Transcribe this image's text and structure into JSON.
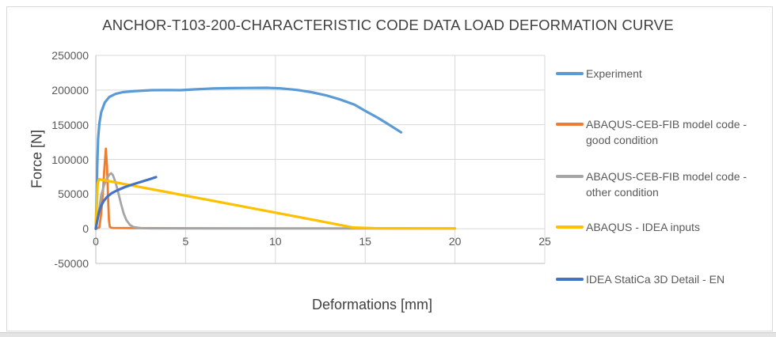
{
  "chart": {
    "title": "ANCHOR-T103-200-CHARACTERISTIC CODE DATA LOAD DEFORMATION CURVE",
    "x_axis_title": "Deformations [mm]",
    "y_axis_title": "Force [N]"
  },
  "styles": {
    "grid_color": "#d9d9d9",
    "axis_color": "#bfbfbf",
    "tick_text_color": "#595959",
    "title_color": "#404040"
  },
  "chart_data": {
    "type": "line",
    "title": "ANCHOR-T103-200-CHARACTERISTIC CODE DATA LOAD DEFORMATION CURVE",
    "xlabel": "Deformations [mm]",
    "ylabel": "Force [N]",
    "xlim": [
      0,
      25
    ],
    "ylim": [
      -50000,
      250000
    ],
    "x_ticks": [
      0,
      5,
      10,
      15,
      20,
      25
    ],
    "y_ticks": [
      -50000,
      0,
      50000,
      100000,
      150000,
      200000,
      250000
    ],
    "grid": true,
    "legend_position": "right",
    "series": [
      {
        "name": "Experiment",
        "color": "#5B9BD5",
        "width": 3.2,
        "points": [
          [
            0,
            0
          ],
          [
            0.04,
            40000
          ],
          [
            0.08,
            90000
          ],
          [
            0.13,
            130000
          ],
          [
            0.2,
            152000
          ],
          [
            0.3,
            168000
          ],
          [
            0.5,
            182000
          ],
          [
            0.75,
            190000
          ],
          [
            1.1,
            194500
          ],
          [
            1.5,
            197000
          ],
          [
            2.2,
            198500
          ],
          [
            3.1,
            199800
          ],
          [
            4,
            200000
          ],
          [
            4.7,
            199800
          ],
          [
            5.5,
            201000
          ],
          [
            6.5,
            202300
          ],
          [
            7.5,
            202800
          ],
          [
            8.5,
            203000
          ],
          [
            9.5,
            203200
          ],
          [
            10.3,
            202400
          ],
          [
            11.2,
            200200
          ],
          [
            12,
            197000
          ],
          [
            12.8,
            192500
          ],
          [
            13.6,
            186500
          ],
          [
            14.4,
            179000
          ],
          [
            15,
            170000
          ],
          [
            15.7,
            160000
          ],
          [
            16.3,
            150500
          ],
          [
            17,
            139000
          ]
        ]
      },
      {
        "name": "ABAQUS-CEB-FIB model code - good condition",
        "color": "#ED7D31",
        "width": 2.8,
        "points": [
          [
            0,
            0
          ],
          [
            0.2,
            2000
          ],
          [
            0.3,
            22000
          ],
          [
            0.4,
            55000
          ],
          [
            0.48,
            88000
          ],
          [
            0.56,
            115500
          ],
          [
            0.62,
            92000
          ],
          [
            0.68,
            48000
          ],
          [
            0.73,
            12000
          ],
          [
            0.78,
            2500
          ],
          [
            0.9,
            1200
          ],
          [
            2,
            1000
          ],
          [
            5,
            800
          ],
          [
            10,
            600
          ],
          [
            15,
            500
          ],
          [
            20,
            400
          ]
        ]
      },
      {
        "name": "ABAQUS-CEB-FIB model code - other condition",
        "color": "#A5A5A5",
        "width": 2.8,
        "points": [
          [
            0,
            0
          ],
          [
            0.1,
            12000
          ],
          [
            0.2,
            30000
          ],
          [
            0.3,
            48000
          ],
          [
            0.45,
            62000
          ],
          [
            0.6,
            71500
          ],
          [
            0.75,
            78000
          ],
          [
            0.85,
            80000
          ],
          [
            0.95,
            77500
          ],
          [
            1.1,
            67000
          ],
          [
            1.25,
            52000
          ],
          [
            1.4,
            36000
          ],
          [
            1.55,
            22000
          ],
          [
            1.7,
            12500
          ],
          [
            1.9,
            5500
          ],
          [
            2.1,
            2500
          ],
          [
            2.5,
            1000
          ],
          [
            3,
            500
          ],
          [
            6,
            300
          ],
          [
            12,
            250
          ],
          [
            20,
            250
          ]
        ]
      },
      {
        "name": "ABAQUS - IDEA inputs",
        "color": "#FFC000",
        "width": 3.2,
        "points": [
          [
            0,
            0
          ],
          [
            0.05,
            30000
          ],
          [
            0.1,
            65000
          ],
          [
            0.18,
            71500
          ],
          [
            0.5,
            69800
          ],
          [
            2,
            62500
          ],
          [
            4,
            52700
          ],
          [
            6,
            42800
          ],
          [
            8,
            33000
          ],
          [
            10,
            23200
          ],
          [
            12,
            13400
          ],
          [
            13.5,
            6000
          ],
          [
            14.3,
            1800
          ],
          [
            15.5,
            800
          ],
          [
            17,
            600
          ],
          [
            20,
            500
          ]
        ]
      },
      {
        "name": "IDEA StatiCa 3D Detail - EN",
        "color": "#4472C4",
        "width": 3.2,
        "points": [
          [
            0,
            0
          ],
          [
            0.08,
            12000
          ],
          [
            0.18,
            24000
          ],
          [
            0.3,
            33500
          ],
          [
            0.45,
            40500
          ],
          [
            0.65,
            46500
          ],
          [
            0.9,
            51500
          ],
          [
            1.2,
            55500
          ],
          [
            1.6,
            60000
          ],
          [
            2,
            63500
          ],
          [
            2.5,
            67500
          ],
          [
            3,
            71500
          ],
          [
            3.35,
            74500
          ]
        ]
      }
    ]
  }
}
